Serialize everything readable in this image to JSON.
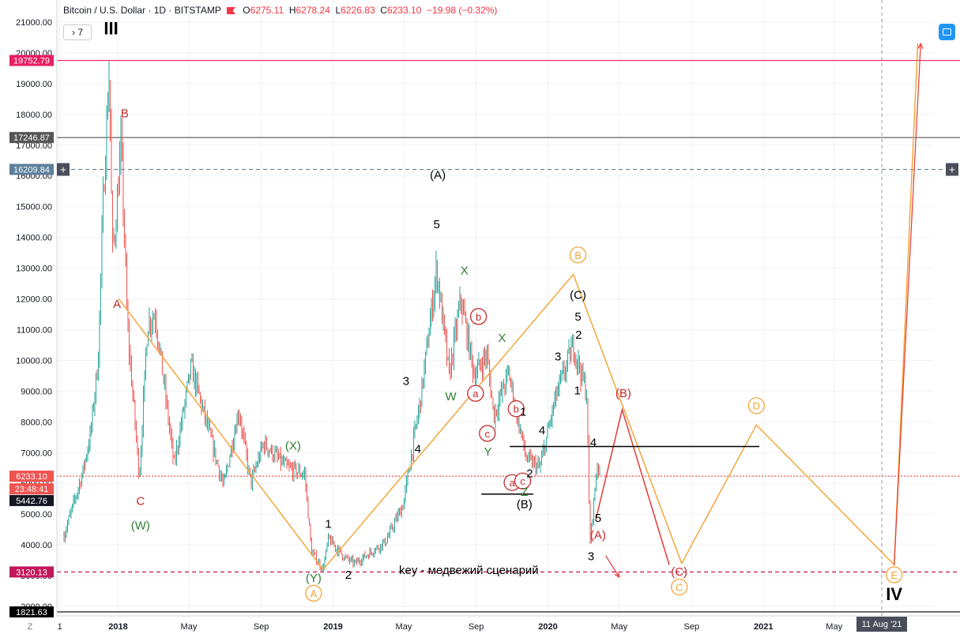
{
  "header": {
    "symbol": "Bitcoin / U.S. Dollar · 1D · BITSTAMP",
    "open_label": "O",
    "open": "6275.11",
    "high_label": "H",
    "high": "6278.24",
    "low_label": "L",
    "low": "6226.83",
    "close_label": "C",
    "close": "6233.10",
    "change": "−19.98 (−0.32%)",
    "indicators_toggle": "7"
  },
  "chart_data": {
    "type": "candlestick",
    "symbol": "Bitcoin / U.S. Dollar",
    "interval": "1D",
    "exchange": "BITSTAMP",
    "x_ticks": [
      "1",
      "2018",
      "May",
      "Sep",
      "2019",
      "May",
      "Sep",
      "2020",
      "May",
      "Sep",
      "2021",
      "May"
    ],
    "y_ticks": [
      "2000.00",
      "3000.00",
      "4000.00",
      "5000.00",
      "6000.00",
      "7000.00",
      "8000.00",
      "9000.00",
      "10000.00",
      "11000.00",
      "12000.00",
      "13000.00",
      "14000.00",
      "15000.00",
      "16000.00",
      "17000.00",
      "18000.00",
      "19000.00",
      "20000.00",
      "21000.00"
    ],
    "ylim": [
      1600,
      21300
    ],
    "price_path": [
      {
        "t": "2017-10-01",
        "p": 4300
      },
      {
        "t": "2017-10-15",
        "p": 5200
      },
      {
        "t": "2017-11-01",
        "p": 6300
      },
      {
        "t": "2017-11-15",
        "p": 7600
      },
      {
        "t": "2017-11-28",
        "p": 10000
      },
      {
        "t": "2017-12-07",
        "p": 15500
      },
      {
        "t": "2017-12-17",
        "p": 19500
      },
      {
        "t": "2017-12-22",
        "p": 13500
      },
      {
        "t": "2017-12-28",
        "p": 14500
      },
      {
        "t": "2018-01-06",
        "p": 17100
      },
      {
        "t": "2018-01-17",
        "p": 11000
      },
      {
        "t": "2018-02-06",
        "p": 6200
      },
      {
        "t": "2018-02-20",
        "p": 11200
      },
      {
        "t": "2018-03-05",
        "p": 11500
      },
      {
        "t": "2018-04-06",
        "p": 6600
      },
      {
        "t": "2018-05-05",
        "p": 9800
      },
      {
        "t": "2018-06-29",
        "p": 5900
      },
      {
        "t": "2018-07-25",
        "p": 8400
      },
      {
        "t": "2018-08-14",
        "p": 6000
      },
      {
        "t": "2018-09-05",
        "p": 7300
      },
      {
        "t": "2018-10-15",
        "p": 6500
      },
      {
        "t": "2018-11-14",
        "p": 6300
      },
      {
        "t": "2018-11-25",
        "p": 3800
      },
      {
        "t": "2018-12-15",
        "p": 3200
      },
      {
        "t": "2018-12-24",
        "p": 4200
      },
      {
        "t": "2019-01-20",
        "p": 3600
      },
      {
        "t": "2019-02-07",
        "p": 3400
      },
      {
        "t": "2019-03-31",
        "p": 4100
      },
      {
        "t": "2019-04-30",
        "p": 5300
      },
      {
        "t": "2019-05-30",
        "p": 8800
      },
      {
        "t": "2019-06-26",
        "p": 13000
      },
      {
        "t": "2019-07-17",
        "p": 9500
      },
      {
        "t": "2019-08-06",
        "p": 12000
      },
      {
        "t": "2019-08-29",
        "p": 9500
      },
      {
        "t": "2019-09-19",
        "p": 10200
      },
      {
        "t": "2019-10-01",
        "p": 8200
      },
      {
        "t": "2019-10-26",
        "p": 9600
      },
      {
        "t": "2019-11-25",
        "p": 6800
      },
      {
        "t": "2019-12-18",
        "p": 6500
      },
      {
        "t": "2020-01-14",
        "p": 8800
      },
      {
        "t": "2020-02-13",
        "p": 10500
      },
      {
        "t": "2020-03-07",
        "p": 8900
      },
      {
        "t": "2020-03-12",
        "p": 4000
      },
      {
        "t": "2020-03-25",
        "p": 6700
      },
      {
        "t": "2020-03-30",
        "p": 6233
      }
    ],
    "horizontal_levels": [
      {
        "price": 19752.79,
        "label": "19752.79",
        "color": "#e91e63",
        "style": "solid"
      },
      {
        "price": 17246.87,
        "label": "17246.87",
        "color": "#555555",
        "style": "solid"
      },
      {
        "price": 16209.84,
        "label": "16209.84",
        "color": "#5d7f9c",
        "style": "dashed"
      },
      {
        "price": 6233.1,
        "label": "6233.10",
        "color": "#ef5350",
        "style": "dotted"
      },
      {
        "price": 3120.13,
        "label": "3120.13",
        "color": "#c2185b",
        "style": "dashed"
      },
      {
        "price": 1821.63,
        "label": "1821.63",
        "color": "#000000",
        "style": "solid"
      }
    ],
    "price_scale_labels": [
      {
        "price": 6233.1,
        "text": "6233.10",
        "color": "#ef5350"
      },
      {
        "price": 6233.1,
        "text": "23:48:41",
        "color": "#ef5350",
        "offset": 1
      },
      {
        "price": 5442.76,
        "text": "5442.76",
        "color": "#131722"
      }
    ],
    "wave_paths": [
      {
        "color": "#f3a63b",
        "points": [
          [
            "2018-01-02",
            12000
          ],
          [
            "2018-12-15",
            3200
          ],
          [
            "2020-02-13",
            12800
          ],
          [
            "2020-08-15",
            3400
          ],
          [
            "2020-12-20",
            7900
          ],
          [
            "2021-08-11",
            3350
          ],
          [
            "2021-09-20",
            20300
          ]
        ]
      },
      {
        "color": "#e53935",
        "points": [
          [
            "2020-03-22",
            4800
          ],
          [
            "2020-05-06",
            8400
          ],
          [
            "2020-07-25",
            3350
          ]
        ]
      },
      {
        "color": "#000000",
        "points": [
          [
            "2019-10-28",
            7200
          ],
          [
            "2020-12-25",
            7200
          ]
        ]
      },
      {
        "color": "#000000",
        "points": [
          [
            "2019-09-10",
            5650
          ],
          [
            "2019-12-07",
            5650
          ]
        ]
      }
    ],
    "arrows": [
      {
        "color": "#e53935",
        "from": [
          "2020-04-08",
          3650
        ],
        "to": [
          "2020-05-01",
          2950
        ]
      },
      {
        "color": "#e53935",
        "from": [
          "2021-08-11",
          3350
        ],
        "to": [
          "2021-09-25",
          20300
        ]
      }
    ],
    "annotations": [
      {
        "text": "III",
        "t": "2017-12-20",
        "p": 20600,
        "color": "#000000"
      },
      {
        "text": "B",
        "t": "2018-01-12",
        "p": 17900,
        "color": "#c62828"
      },
      {
        "text": "A",
        "t": "2017-12-30",
        "p": 11700,
        "color": "#c62828"
      },
      {
        "text": "C",
        "t": "2018-02-08",
        "p": 5300,
        "color": "#c62828"
      },
      {
        "text": "(W)",
        "t": "2018-02-08",
        "p": 4500,
        "color": "#2e7d32"
      },
      {
        "text": "(X)",
        "t": "2018-10-25",
        "p": 7100,
        "color": "#2e7d32"
      },
      {
        "text": "(Y)",
        "t": "2018-11-29",
        "p": 2800,
        "color": "#2e7d32"
      },
      {
        "text": "A",
        "t": "2018-11-29",
        "p": 2300,
        "color": "#f3a63b",
        "circled": true
      },
      {
        "text": "1",
        "t": "2018-12-24",
        "p": 4550,
        "color": "#000000"
      },
      {
        "text": "2",
        "t": "2019-01-27",
        "p": 2900,
        "color": "#000000"
      },
      {
        "text": "3",
        "t": "2019-05-05",
        "p": 9200,
        "color": "#000000"
      },
      {
        "text": "4",
        "t": "2019-05-25",
        "p": 7000,
        "color": "#000000"
      },
      {
        "text": "W",
        "t": "2019-07-20",
        "p": 8700,
        "color": "#2e7d32"
      },
      {
        "text": "5",
        "t": "2019-06-26",
        "p": 14300,
        "color": "#000000"
      },
      {
        "text": "(A)",
        "t": "2019-06-28",
        "p": 15900,
        "color": "#000000"
      },
      {
        "text": "X",
        "t": "2019-08-12",
        "p": 12800,
        "color": "#2e7d32"
      },
      {
        "text": "b",
        "t": "2019-09-05",
        "p": 11300,
        "color": "#c62828",
        "circled": true
      },
      {
        "text": "a",
        "t": "2019-08-31",
        "p": 8800,
        "color": "#c62828",
        "circled": true
      },
      {
        "text": "c",
        "t": "2019-09-20",
        "p": 7500,
        "color": "#c62828",
        "circled": true
      },
      {
        "text": "Y",
        "t": "2019-09-21",
        "p": 6900,
        "color": "#2e7d32"
      },
      {
        "text": "X",
        "t": "2019-10-15",
        "p": 10600,
        "color": "#2e7d32"
      },
      {
        "text": "b",
        "t": "2019-11-08",
        "p": 8300,
        "color": "#c62828",
        "circled": true
      },
      {
        "text": "1",
        "t": "2019-11-20",
        "p": 8200,
        "color": "#000000"
      },
      {
        "text": "a",
        "t": "2019-11-01",
        "p": 5900,
        "color": "#c62828",
        "circled": true
      },
      {
        "text": "c",
        "t": "2019-11-19",
        "p": 5950,
        "color": "#c62828",
        "circled": true
      },
      {
        "text": "2",
        "t": "2019-12-01",
        "p": 6200,
        "color": "#000000"
      },
      {
        "text": "Z",
        "t": "2019-11-22",
        "p": 5600,
        "color": "#2e7d32"
      },
      {
        "text": "(B)",
        "t": "2019-11-22",
        "p": 5200,
        "color": "#000000"
      },
      {
        "text": "4",
        "t": "2019-12-22",
        "p": 7600,
        "color": "#000000"
      },
      {
        "text": "3",
        "t": "2020-01-18",
        "p": 10000,
        "color": "#000000"
      },
      {
        "text": "1",
        "t": "2020-02-20",
        "p": 8900,
        "color": "#000000"
      },
      {
        "text": "2",
        "t": "2020-02-22",
        "p": 10700,
        "color": "#000000"
      },
      {
        "text": "5",
        "t": "2020-02-21",
        "p": 11300,
        "color": "#000000"
      },
      {
        "text": "(C)",
        "t": "2020-02-21",
        "p": 12000,
        "color": "#000000"
      },
      {
        "text": "B",
        "t": "2020-02-21",
        "p": 13300,
        "color": "#f3a63b",
        "circled": true
      },
      {
        "text": "4",
        "t": "2020-03-18",
        "p": 7200,
        "color": "#000000"
      },
      {
        "text": "5",
        "t": "2020-03-26",
        "p": 4750,
        "color": "#000000"
      },
      {
        "text": "(A)",
        "t": "2020-03-26",
        "p": 4200,
        "color": "#c62828"
      },
      {
        "text": "3",
        "t": "2020-03-14",
        "p": 3500,
        "color": "#000000"
      },
      {
        "text": "(B)",
        "t": "2020-05-08",
        "p": 8800,
        "color": "#c62828"
      },
      {
        "text": "(C)",
        "t": "2020-08-11",
        "p": 3000,
        "color": "#c62828"
      },
      {
        "text": "C",
        "t": "2020-08-11",
        "p": 2500,
        "color": "#f3a63b",
        "circled": true
      },
      {
        "text": "D",
        "t": "2020-12-20",
        "p": 8400,
        "color": "#f3a63b",
        "circled": true
      },
      {
        "text": "E",
        "t": "2021-08-11",
        "p": 2900,
        "color": "#f3a63b",
        "circled": true
      },
      {
        "text": "IV",
        "t": "2021-08-11",
        "p": 2200,
        "color": "#000000"
      }
    ],
    "note": "key - медвежий сценарий",
    "crosshair": {
      "date_label": "11 Aug '21",
      "price_label": "16209.84"
    }
  }
}
